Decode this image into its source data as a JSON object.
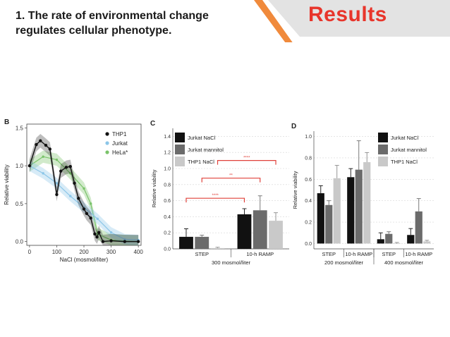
{
  "slide": {
    "title_line1": "1. The rate of environmental change",
    "title_line2": "regulates cellular phenotype.",
    "results_label": "Results",
    "accent_color": "#f08a3c",
    "banner_color": "#e3e3e3",
    "results_color": "#e8352b"
  },
  "chart_data": [
    {
      "panel": "B",
      "type": "line",
      "xlabel": "NaCl (mosmol/liter)",
      "ylabel": "Relative viability",
      "xlim": [
        -10,
        410
      ],
      "ylim": [
        -0.05,
        1.55
      ],
      "xticks": [
        0,
        100,
        200,
        300,
        400
      ],
      "yticks": [
        0.0,
        0.5,
        1.0,
        1.5
      ],
      "ytick_labels": [
        "0.0",
        "0.5",
        "1.0",
        "1.5"
      ],
      "legend": {
        "position": "top-right",
        "labels": [
          "THP1",
          "Jurkat",
          "HeLa*"
        ],
        "colors": [
          "#111111",
          "#8cc6e8",
          "#7ac36a"
        ]
      },
      "series": [
        {
          "name": "THP1",
          "color": "#111111",
          "x": [
            0,
            25,
            40,
            60,
            75,
            100,
            115,
            135,
            150,
            165,
            180,
            200,
            210,
            225,
            240,
            248,
            255,
            270,
            300,
            350,
            400
          ],
          "y": [
            1.0,
            1.28,
            1.33,
            1.27,
            1.22,
            0.62,
            0.93,
            0.98,
            0.99,
            0.77,
            0.57,
            0.43,
            0.37,
            0.31,
            0.1,
            0.06,
            0.12,
            0.0,
            0.01,
            0.0,
            0.0
          ]
        },
        {
          "name": "Jurkat",
          "color": "#8cc6e8",
          "x": [
            0,
            50,
            100,
            150,
            200,
            250,
            300,
            350,
            400
          ],
          "y": [
            1.0,
            0.9,
            0.77,
            0.6,
            0.45,
            0.3,
            0.12,
            0.03,
            0.02
          ]
        },
        {
          "name": "HeLa*",
          "color": "#7ac36a",
          "x": [
            0,
            50,
            100,
            150,
            200,
            225,
            250,
            300,
            350,
            400
          ],
          "y": [
            1.0,
            1.12,
            1.08,
            0.9,
            0.7,
            0.5,
            0.1,
            0.02,
            0.01,
            0.0
          ]
        }
      ]
    },
    {
      "panel": "C",
      "type": "bar",
      "ylabel": "Relative viability",
      "ylim": [
        0,
        1.5
      ],
      "yticks": [
        0.0,
        0.2,
        0.4,
        0.6,
        0.8,
        1.0,
        1.2,
        1.4
      ],
      "ytick_labels": [
        "0.0",
        "0.2",
        "0.4",
        "0.6",
        "0.8",
        "1.0",
        "1.2",
        "1.4"
      ],
      "categories": [
        "STEP",
        "10-h RAMP"
      ],
      "group_label": "300 mosmol/liter",
      "legend": {
        "position": "top-left",
        "labels": [
          "Jurkat NaCl",
          "Jurkat mannitol",
          "THP1 NaCl"
        ]
      },
      "series": [
        {
          "name": "Jurkat NaCl",
          "color": "#111111",
          "values": [
            0.15,
            0.43
          ],
          "errors": [
            0.1,
            0.07
          ]
        },
        {
          "name": "Jurkat mannitol",
          "color": "#6b6b6b",
          "values": [
            0.15,
            0.48
          ],
          "errors": [
            0.02,
            0.18
          ]
        },
        {
          "name": "THP1 NaCl",
          "color": "#c9c9c9",
          "values": [
            0.01,
            0.35
          ],
          "errors": [
            0.01,
            0.1
          ]
        }
      ],
      "significance": [
        {
          "label": "****",
          "from": "STEP · Jurkat NaCl",
          "to": "10-h RAMP · Jurkat NaCl",
          "y": 0.63
        },
        {
          "label": "**",
          "from": "STEP · Jurkat mannitol",
          "to": "10-h RAMP · Jurkat mannitol",
          "y": 0.88
        },
        {
          "label": "****",
          "from": "STEP · THP1 NaCl",
          "to": "10-h RAMP · THP1 NaCl",
          "y": 1.1
        }
      ],
      "significance_color": "#e0413a"
    },
    {
      "panel": "D",
      "type": "bar",
      "ylabel": "Relative viability",
      "ylim": [
        -0.05,
        1.05
      ],
      "yticks": [
        0.0,
        0.2,
        0.4,
        0.6,
        0.8,
        1.0
      ],
      "ytick_labels": [
        "0.0",
        "0.2",
        "0.4",
        "0.6",
        "0.8",
        "1.0"
      ],
      "categories": [
        "STEP",
        "10-h RAMP",
        "STEP",
        "10-h RAMP"
      ],
      "group_labels": [
        "200 mosmol/liter",
        "400 mosmol/liter"
      ],
      "legend": {
        "position": "top-right",
        "labels": [
          "Jurkat NaCl",
          "Jurkat mannitol",
          "THP1 NaCl"
        ]
      },
      "series": [
        {
          "name": "Jurkat NaCl",
          "color": "#111111",
          "values": [
            0.47,
            0.62,
            0.04,
            0.08
          ],
          "errors": [
            0.07,
            0.08,
            0.06,
            0.06
          ]
        },
        {
          "name": "Jurkat mannitol",
          "color": "#6b6b6b",
          "values": [
            0.36,
            0.69,
            0.09,
            0.3
          ],
          "errors": [
            0.04,
            0.27,
            0.02,
            0.12
          ]
        },
        {
          "name": "THP1 NaCl",
          "color": "#c9c9c9",
          "values": [
            0.61,
            0.76,
            0.0,
            0.02
          ],
          "errors": [
            0.12,
            0.09,
            0.01,
            0.01
          ]
        }
      ]
    }
  ]
}
